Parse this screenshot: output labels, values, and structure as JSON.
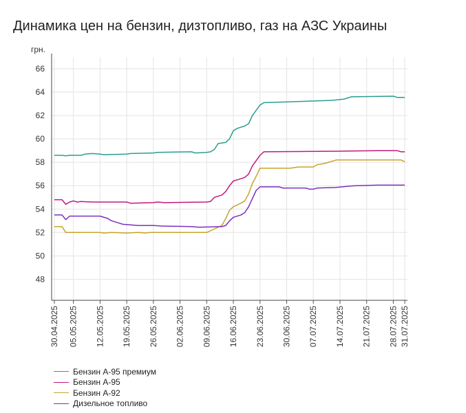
{
  "title": "Динамика цен на бензин, дизтопливо, газ на АЗС Украины",
  "chart_data": {
    "type": "line",
    "title": "Динамика цен на бензин, дизтопливо, газ на АЗС Украины",
    "ylabel": "грн.",
    "xlabel": "",
    "ylim": [
      46.2,
      67
    ],
    "yticks": [
      48,
      50,
      52,
      54,
      56,
      58,
      60,
      62,
      64,
      66
    ],
    "grid": true,
    "legend_position": "bottom-left",
    "x_range": [
      "30.04.2025",
      "31.07.2025"
    ],
    "xtick_labels": [
      "30.04.2025",
      "05.05.2025",
      "12.05.2025",
      "19.05.2025",
      "26.05.2025",
      "02.06.2025",
      "09.06.2025",
      "16.06.2025",
      "23.06.2025",
      "30.06.2025",
      "07.07.2025",
      "14.07.2025",
      "21.07.2025",
      "28.07.2025",
      "31.07.2025"
    ],
    "series": [
      {
        "name": "Бензин А-95 премиум",
        "color": "#2a9d8f",
        "points": [
          [
            "30.04.2025",
            58.6
          ],
          [
            "02.05.2025",
            58.6
          ],
          [
            "03.05.2025",
            58.55
          ],
          [
            "04.05.2025",
            58.6
          ],
          [
            "07.05.2025",
            58.6
          ],
          [
            "08.05.2025",
            58.7
          ],
          [
            "10.05.2025",
            58.75
          ],
          [
            "12.05.2025",
            58.7
          ],
          [
            "13.05.2025",
            58.65
          ],
          [
            "19.05.2025",
            58.7
          ],
          [
            "20.05.2025",
            58.75
          ],
          [
            "26.05.2025",
            58.8
          ],
          [
            "27.05.2025",
            58.85
          ],
          [
            "05.06.2025",
            58.9
          ],
          [
            "06.06.2025",
            58.8
          ],
          [
            "09.06.2025",
            58.85
          ],
          [
            "10.06.2025",
            58.9
          ],
          [
            "11.06.2025",
            59.1
          ],
          [
            "12.06.2025",
            59.6
          ],
          [
            "14.06.2025",
            59.7
          ],
          [
            "15.06.2025",
            60.0
          ],
          [
            "16.06.2025",
            60.7
          ],
          [
            "17.06.2025",
            60.9
          ],
          [
            "19.06.2025",
            61.1
          ],
          [
            "20.06.2025",
            61.3
          ],
          [
            "21.06.2025",
            62.0
          ],
          [
            "23.06.2025",
            62.9
          ],
          [
            "24.06.2025",
            63.1
          ],
          [
            "03.07.2025",
            63.2
          ],
          [
            "12.07.2025",
            63.3
          ],
          [
            "15.07.2025",
            63.4
          ],
          [
            "16.07.2025",
            63.5
          ],
          [
            "17.07.2025",
            63.6
          ],
          [
            "28.07.2025",
            63.65
          ],
          [
            "29.07.2025",
            63.55
          ],
          [
            "31.07.2025",
            63.55
          ]
        ]
      },
      {
        "name": "Бензин А-95",
        "color": "#c2187a",
        "points": [
          [
            "30.04.2025",
            54.8
          ],
          [
            "02.05.2025",
            54.8
          ],
          [
            "03.05.2025",
            54.4
          ],
          [
            "04.05.2025",
            54.6
          ],
          [
            "05.05.2025",
            54.7
          ],
          [
            "06.05.2025",
            54.6
          ],
          [
            "07.05.2025",
            54.65
          ],
          [
            "10.05.2025",
            54.6
          ],
          [
            "12.05.2025",
            54.6
          ],
          [
            "19.05.2025",
            54.6
          ],
          [
            "20.05.2025",
            54.5
          ],
          [
            "26.05.2025",
            54.55
          ],
          [
            "27.05.2025",
            54.6
          ],
          [
            "29.05.2025",
            54.55
          ],
          [
            "09.06.2025",
            54.6
          ],
          [
            "10.06.2025",
            54.65
          ],
          [
            "11.06.2025",
            55.0
          ],
          [
            "13.06.2025",
            55.2
          ],
          [
            "14.06.2025",
            55.5
          ],
          [
            "15.06.2025",
            56.0
          ],
          [
            "16.06.2025",
            56.4
          ],
          [
            "17.06.2025",
            56.5
          ],
          [
            "19.06.2025",
            56.7
          ],
          [
            "20.06.2025",
            57.0
          ],
          [
            "21.06.2025",
            57.7
          ],
          [
            "23.06.2025",
            58.6
          ],
          [
            "24.06.2025",
            58.9
          ],
          [
            "14.07.2025",
            58.95
          ],
          [
            "24.07.2025",
            59.0
          ],
          [
            "29.07.2025",
            59.0
          ],
          [
            "30.07.2025",
            58.9
          ],
          [
            "31.07.2025",
            58.9
          ]
        ]
      },
      {
        "name": "Бензин А-92",
        "color": "#c9a22a",
        "points": [
          [
            "30.04.2025",
            52.5
          ],
          [
            "02.05.2025",
            52.5
          ],
          [
            "03.05.2025",
            52.0
          ],
          [
            "12.05.2025",
            52.0
          ],
          [
            "13.05.2025",
            51.95
          ],
          [
            "15.05.2025",
            52.0
          ],
          [
            "19.05.2025",
            51.95
          ],
          [
            "22.05.2025",
            52.0
          ],
          [
            "24.05.2025",
            51.95
          ],
          [
            "25.05.2025",
            52.0
          ],
          [
            "09.06.2025",
            52.0
          ],
          [
            "11.06.2025",
            52.3
          ],
          [
            "13.06.2025",
            52.6
          ],
          [
            "14.06.2025",
            53.2
          ],
          [
            "15.06.2025",
            53.9
          ],
          [
            "16.06.2025",
            54.2
          ],
          [
            "18.06.2025",
            54.5
          ],
          [
            "19.06.2025",
            54.7
          ],
          [
            "20.06.2025",
            55.3
          ],
          [
            "21.06.2025",
            56.2
          ],
          [
            "22.06.2025",
            56.8
          ],
          [
            "23.06.2025",
            57.5
          ],
          [
            "01.07.2025",
            57.5
          ],
          [
            "03.07.2025",
            57.6
          ],
          [
            "07.07.2025",
            57.6
          ],
          [
            "08.07.2025",
            57.8
          ],
          [
            "10.07.2025",
            57.9
          ],
          [
            "13.07.2025",
            58.2
          ],
          [
            "30.07.2025",
            58.2
          ],
          [
            "31.07.2025",
            58.05
          ]
        ]
      },
      {
        "name": "Дизельное топливо",
        "color": "#7b2fbe",
        "points": [
          [
            "30.04.2025",
            53.5
          ],
          [
            "02.05.2025",
            53.5
          ],
          [
            "03.05.2025",
            53.1
          ],
          [
            "04.05.2025",
            53.4
          ],
          [
            "12.05.2025",
            53.4
          ],
          [
            "14.05.2025",
            53.2
          ],
          [
            "15.05.2025",
            53.0
          ],
          [
            "17.05.2025",
            52.8
          ],
          [
            "18.05.2025",
            52.7
          ],
          [
            "20.05.2025",
            52.65
          ],
          [
            "22.05.2025",
            52.6
          ],
          [
            "26.05.2025",
            52.6
          ],
          [
            "28.05.2025",
            52.55
          ],
          [
            "05.06.2025",
            52.5
          ],
          [
            "07.06.2025",
            52.45
          ],
          [
            "13.06.2025",
            52.5
          ],
          [
            "14.06.2025",
            52.6
          ],
          [
            "15.06.2025",
            53.0
          ],
          [
            "16.06.2025",
            53.3
          ],
          [
            "18.06.2025",
            53.5
          ],
          [
            "19.06.2025",
            53.7
          ],
          [
            "20.06.2025",
            54.2
          ],
          [
            "21.06.2025",
            54.9
          ],
          [
            "22.06.2025",
            55.6
          ],
          [
            "23.06.2025",
            55.9
          ],
          [
            "28.06.2025",
            55.9
          ],
          [
            "29.06.2025",
            55.8
          ],
          [
            "05.07.2025",
            55.8
          ],
          [
            "06.07.2025",
            55.7
          ],
          [
            "07.07.2025",
            55.7
          ],
          [
            "08.07.2025",
            55.8
          ],
          [
            "13.07.2025",
            55.85
          ],
          [
            "16.07.2025",
            55.95
          ],
          [
            "18.07.2025",
            56.0
          ],
          [
            "24.07.2025",
            56.05
          ],
          [
            "31.07.2025",
            56.05
          ]
        ]
      }
    ]
  }
}
